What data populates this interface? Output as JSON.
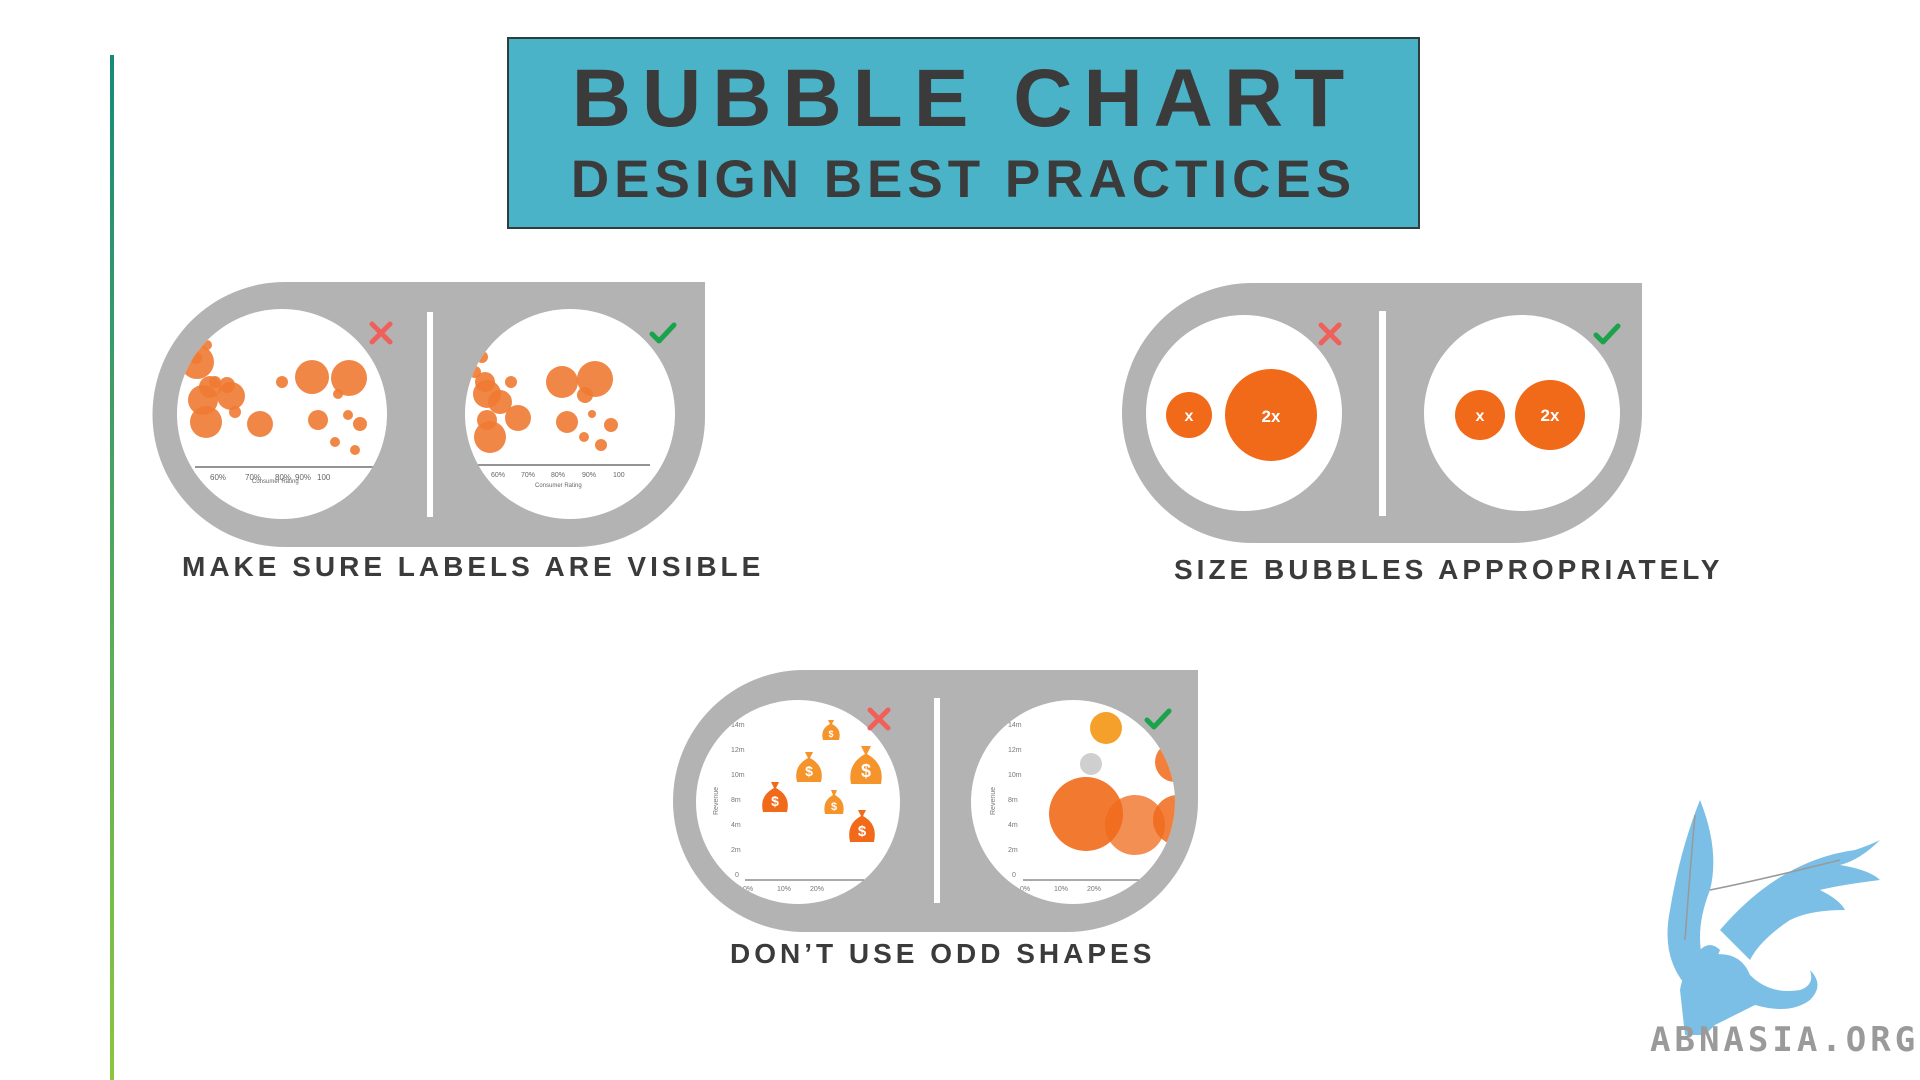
{
  "title": {
    "main": "BUBBLE CHART",
    "sub": "DESIGN BEST PRACTICES"
  },
  "practices": [
    {
      "caption": "MAKE SURE LABELS ARE VISIBLE",
      "bad_icon": "cross-icon",
      "good_icon": "check-icon"
    },
    {
      "caption": "SIZE BUBBLES APPROPRIATELY",
      "bad_icon": "cross-icon",
      "good_icon": "check-icon"
    },
    {
      "caption": "DON’T USE ODD SHAPES",
      "bad_icon": "cross-icon",
      "good_icon": "check-icon"
    }
  ],
  "labels_panel": {
    "ticks": [
      "60%",
      "70%",
      "80%",
      "90%",
      "100"
    ],
    "axis_label": "Consumer Rating"
  },
  "size_panel": {
    "small_label": "x",
    "large_label": "2x"
  },
  "shapes_panel": {
    "y_ticks": [
      "14m",
      "12m",
      "10m",
      "8m",
      "4m",
      "2m",
      "0"
    ],
    "x_ticks": [
      "0%",
      "10%",
      "20%"
    ],
    "y_label": "Revenue",
    "money_symbol": "$"
  },
  "logo": {
    "text": "ABNASIA.ORG"
  },
  "colors": {
    "title_bg": "#4ab3c8",
    "panel_gray": "#b3b3b3",
    "bubble_orange": "#f07a32",
    "bubble_dark_orange": "#f06a1a",
    "cross_red": "#f0605a",
    "check_green": "#1aa34a",
    "text_dark": "#3b3b3b",
    "logo_blue": "#7cbfe6"
  }
}
